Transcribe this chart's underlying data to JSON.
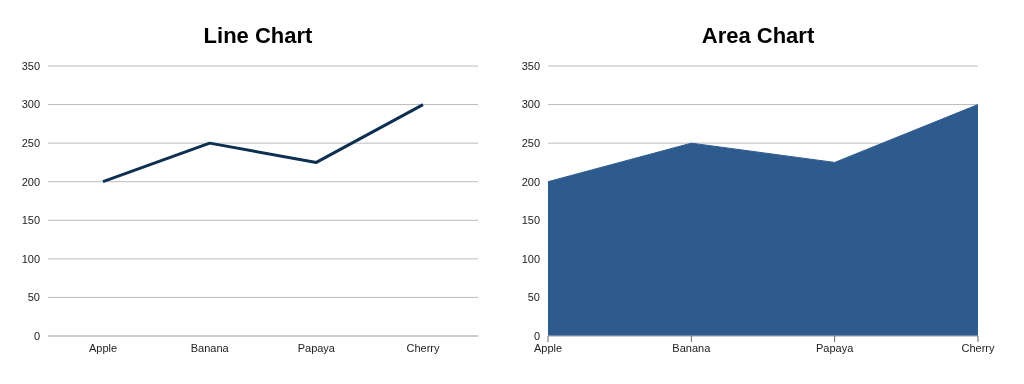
{
  "chart_data": [
    {
      "type": "line",
      "title": "Line Chart",
      "categories": [
        "Apple",
        "Banana",
        "Papaya",
        "Cherry"
      ],
      "values": [
        200,
        250,
        225,
        300
      ],
      "color": "#0d3050",
      "ylim": [
        0,
        350
      ],
      "yticks": [
        0,
        50,
        100,
        150,
        200,
        250,
        300,
        350
      ],
      "grid": "y",
      "legend": false,
      "marker": "none"
    },
    {
      "type": "area",
      "title": "Area Chart",
      "categories": [
        "Apple",
        "Banana",
        "Papaya",
        "Cherry"
      ],
      "values": [
        200,
        250,
        225,
        300
      ],
      "color": "#2e5b8e",
      "ylim": [
        0,
        350
      ],
      "yticks": [
        0,
        50,
        100,
        150,
        200,
        250,
        300,
        350
      ],
      "grid": "y",
      "legend": false
    }
  ]
}
